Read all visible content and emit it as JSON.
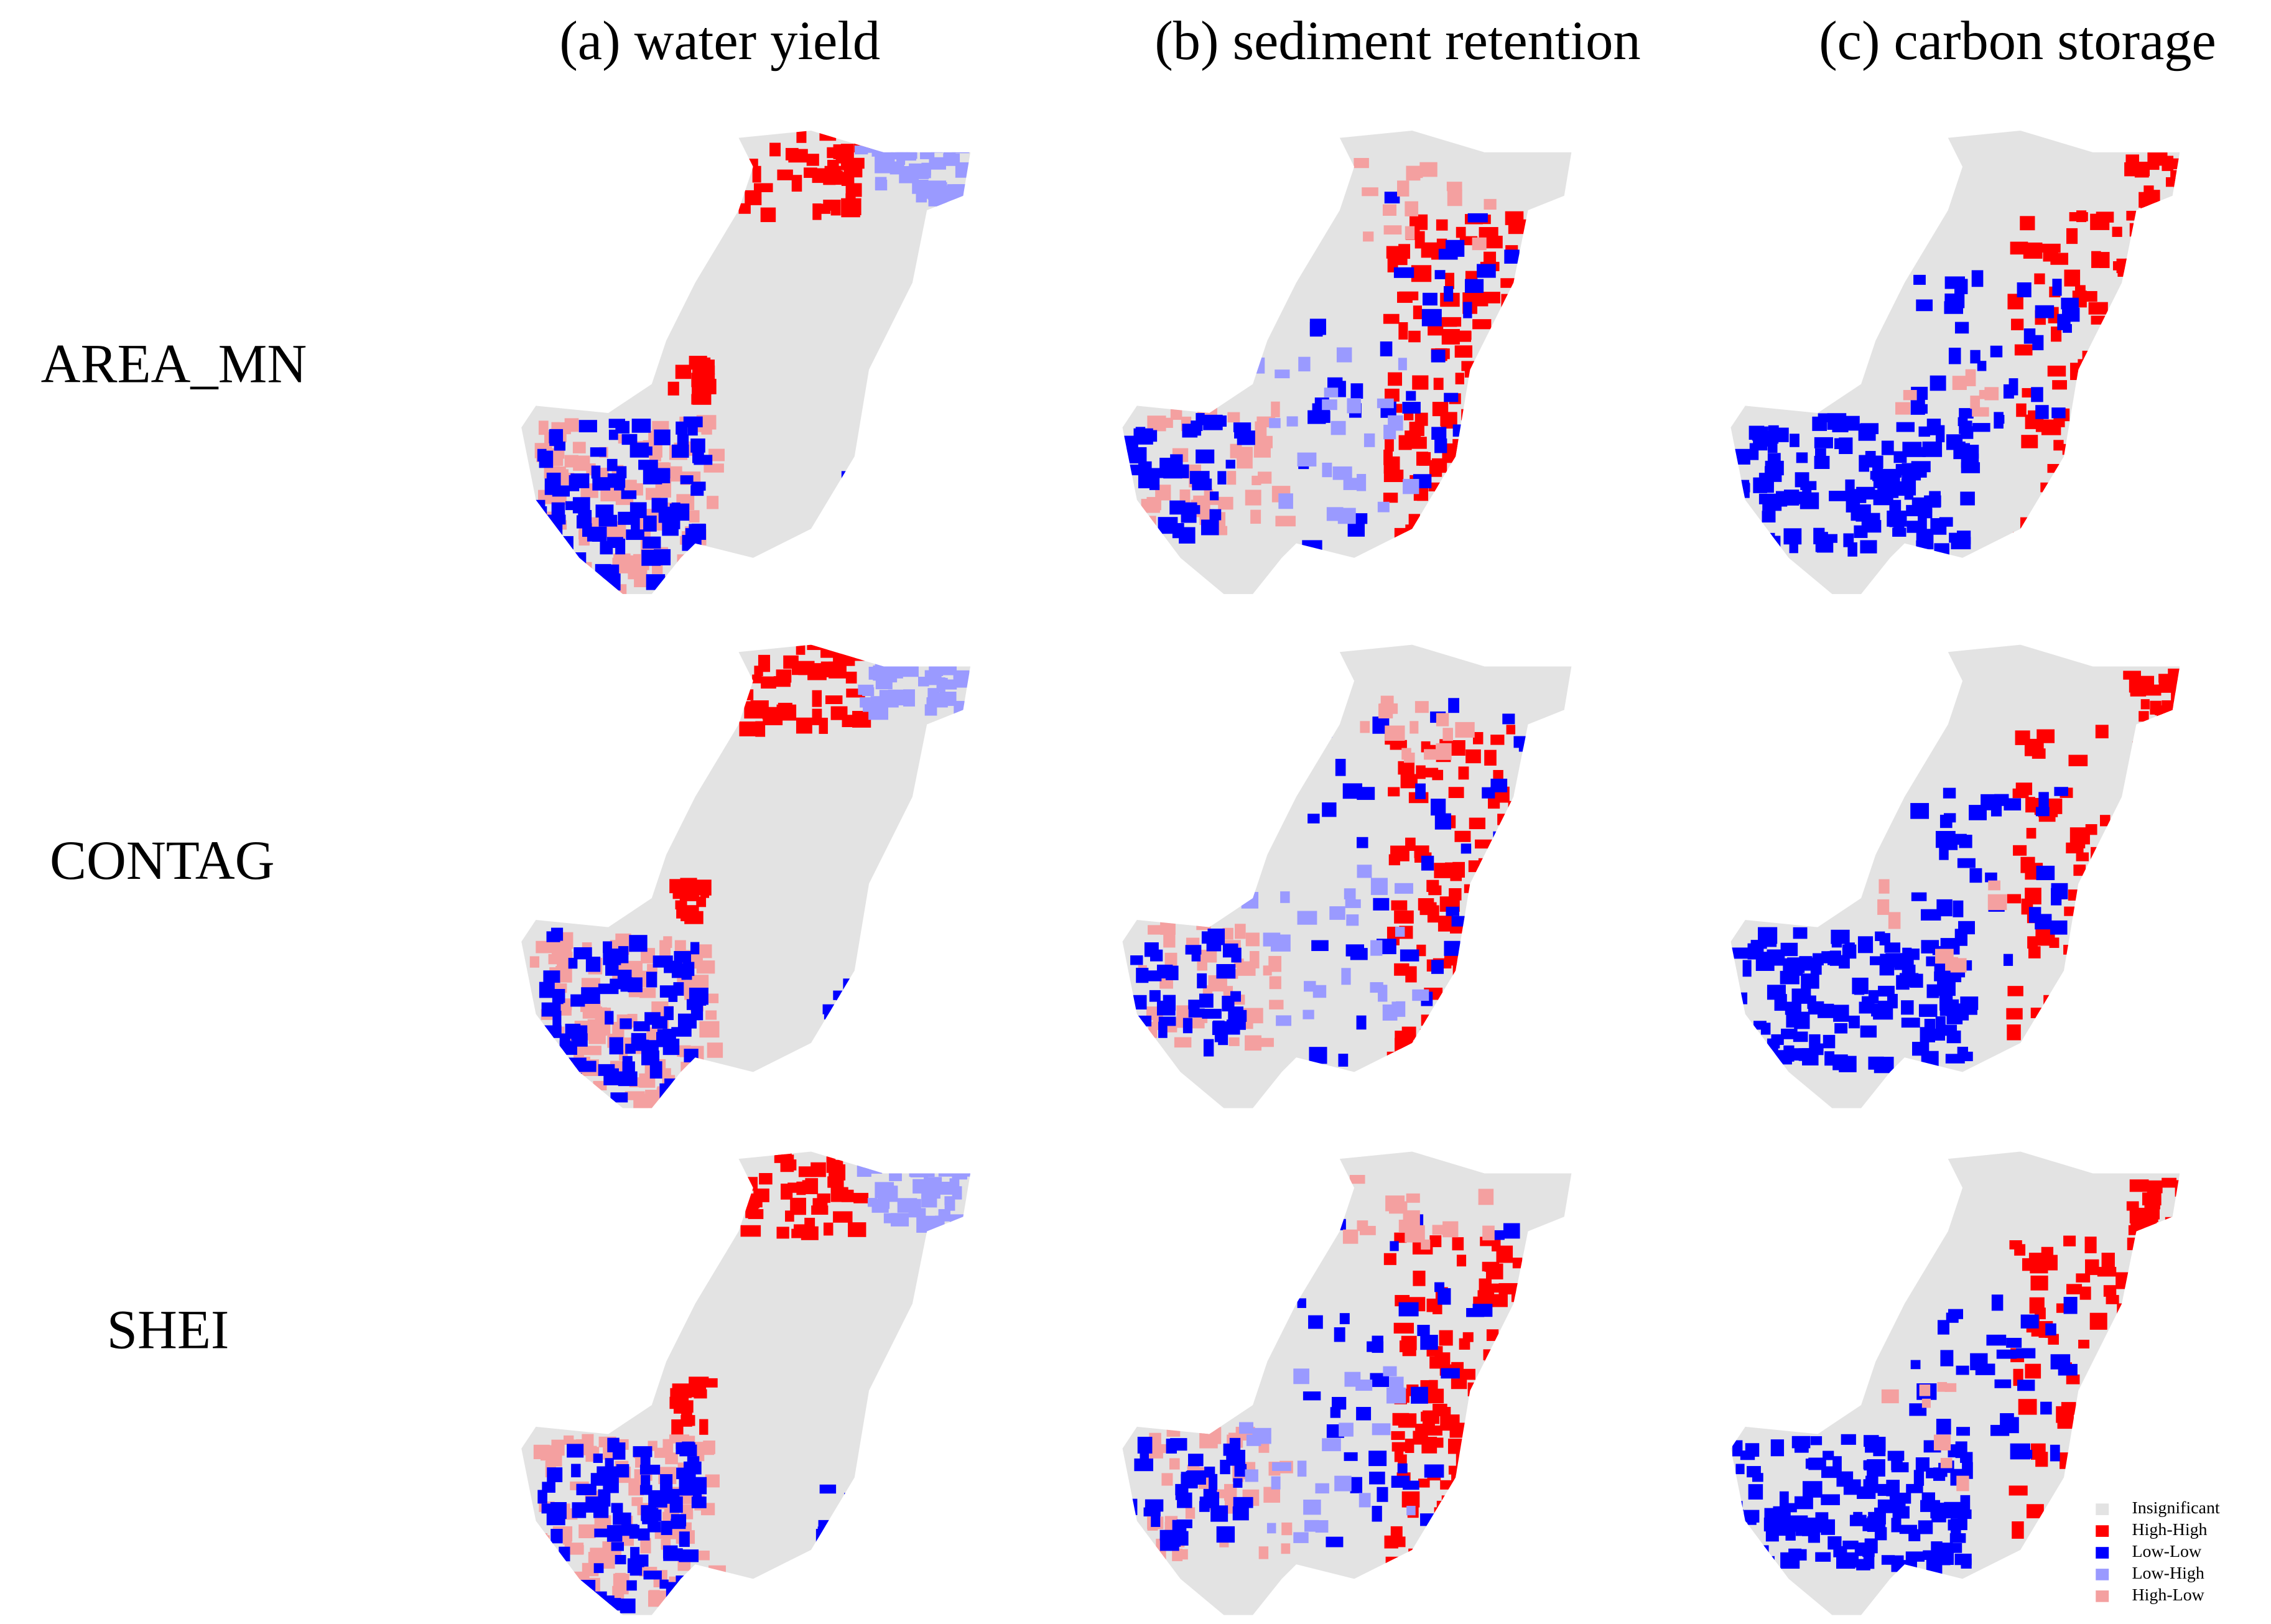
{
  "columns": [
    "(a) water yield",
    "(b) sediment retention",
    "(c) carbon storage"
  ],
  "rows": [
    "AREA_MN",
    "CONTAG",
    "SHEI"
  ],
  "legend": [
    {
      "label": "Insignificant",
      "color": "#e3e3e3"
    },
    {
      "label": "High-High",
      "color": "#ff0000"
    },
    {
      "label": "Low-Low",
      "color": "#0000ff"
    },
    {
      "label": "Low-High",
      "color": "#9a9aff"
    },
    {
      "label": "High-Low",
      "color": "#f4a0a0"
    }
  ]
}
